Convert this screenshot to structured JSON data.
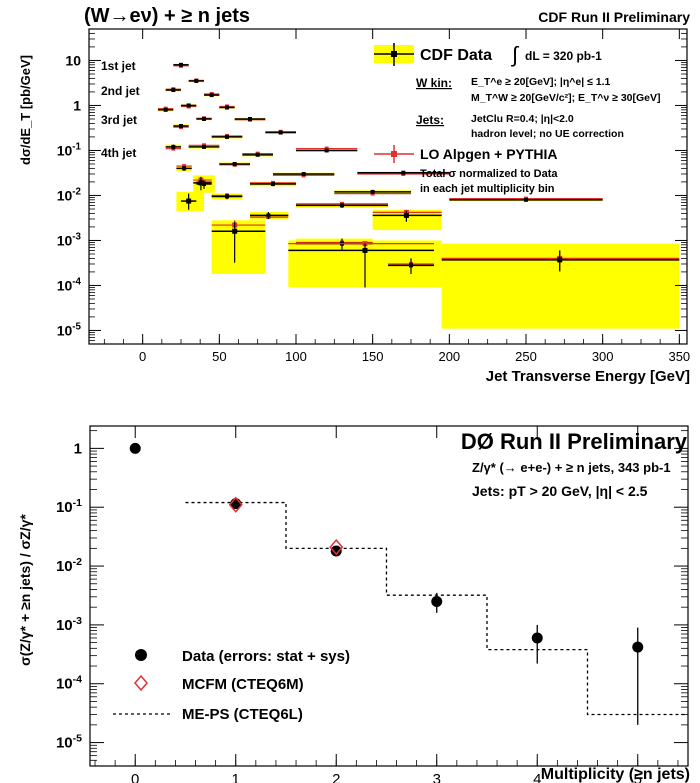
{
  "chart_data": [
    {
      "type": "scatter",
      "title": "(W→eν) + ≥ n jets",
      "subtitle": "CDF Run II Preliminary",
      "xlabel": "Jet Transverse Energy [GeV]",
      "ylabel": "dσ/dE_T [pb/GeV]",
      "xlim": [
        -35,
        355
      ],
      "ylim": [
        5e-06,
        50
      ],
      "yscale": "log",
      "xticks": [
        0,
        50,
        100,
        150,
        200,
        250,
        300,
        350
      ],
      "ytick_labels": [
        "10",
        "1",
        "10-1",
        "10-2",
        "10-3",
        "10-4",
        "10-5"
      ],
      "legend": {
        "data_label": "CDF Data",
        "lumi_text": "dL = 320 pb-1",
        "wkin_title": "W kin:",
        "wkin_line1": "E_T^e ≥ 20[GeV]; |η^e| ≤ 1.1",
        "wkin_line2": "M_T^W ≥ 20[GeV/c²]; E_T^ν ≥ 30[GeV]",
        "jets_title": "Jets:",
        "jets_line1": "JetClu R=0.4; |η|<2.0",
        "jets_line2": "hadron level; no UE correction",
        "mc_label": "LO Alpgen + PYTHIA",
        "note_line1": "Total σ normalized to Data",
        "note_line2": "in each jet multiplicity bin"
      },
      "jet_labels": [
        "1st jet",
        "2nd jet",
        "3rd jet",
        "4th jet"
      ],
      "series": [
        {
          "name": "CDF Data",
          "role": "data",
          "points": [
            {
              "x": 25,
              "y": 8,
              "xlo": 20,
              "xhi": 30,
              "ylo": 7.5,
              "yhi": 8.5
            },
            {
              "x": 35,
              "y": 3.5,
              "xlo": 30,
              "xhi": 40,
              "ylo": 3.3,
              "yhi": 3.7
            },
            {
              "x": 45,
              "y": 1.7,
              "xlo": 40,
              "xhi": 50,
              "ylo": 1.6,
              "yhi": 1.8
            },
            {
              "x": 55,
              "y": 0.9,
              "xlo": 50,
              "xhi": 60,
              "ylo": 0.85,
              "yhi": 0.95
            },
            {
              "x": 70,
              "y": 0.5,
              "xlo": 60,
              "xhi": 80,
              "ylo": 0.47,
              "yhi": 0.53
            },
            {
              "x": 90,
              "y": 0.25,
              "xlo": 80,
              "xhi": 100,
              "ylo": 0.235,
              "yhi": 0.265
            },
            {
              "x": 120,
              "y": 0.1,
              "xlo": 100,
              "xhi": 140,
              "ylo": 0.094,
              "yhi": 0.106
            },
            {
              "x": 170,
              "y": 0.032,
              "xlo": 140,
              "xhi": 200,
              "ylo": 0.03,
              "yhi": 0.034
            },
            {
              "x": 250,
              "y": 0.008,
              "xlo": 200,
              "xhi": 300,
              "ylo": 0.0075,
              "yhi": 0.0085
            },
            {
              "x": 20,
              "y": 2.2,
              "xlo": 15,
              "xhi": 25,
              "ylo": 2.05,
              "yhi": 2.35
            },
            {
              "x": 30,
              "y": 1.0,
              "xlo": 25,
              "xhi": 35,
              "ylo": 0.94,
              "yhi": 1.06
            },
            {
              "x": 40,
              "y": 0.5,
              "xlo": 35,
              "xhi": 45,
              "ylo": 0.47,
              "yhi": 0.53
            },
            {
              "x": 55,
              "y": 0.2,
              "xlo": 45,
              "xhi": 65,
              "ylo": 0.185,
              "yhi": 0.215
            },
            {
              "x": 75,
              "y": 0.08,
              "xlo": 65,
              "xhi": 85,
              "ylo": 0.074,
              "yhi": 0.086
            },
            {
              "x": 105,
              "y": 0.03,
              "xlo": 85,
              "xhi": 125,
              "ylo": 0.028,
              "yhi": 0.032
            },
            {
              "x": 150,
              "y": 0.012,
              "xlo": 125,
              "xhi": 175,
              "ylo": 0.011,
              "yhi": 0.013
            },
            {
              "x": 15,
              "y": 0.8,
              "xlo": 10,
              "xhi": 20,
              "ylo": 0.74,
              "yhi": 0.86
            },
            {
              "x": 25,
              "y": 0.35,
              "xlo": 20,
              "xhi": 30,
              "ylo": 0.32,
              "yhi": 0.38
            },
            {
              "x": 40,
              "y": 0.12,
              "xlo": 30,
              "xhi": 50,
              "ylo": 0.11,
              "yhi": 0.13
            },
            {
              "x": 60,
              "y": 0.05,
              "xlo": 50,
              "xhi": 70,
              "ylo": 0.046,
              "yhi": 0.054
            },
            {
              "x": 85,
              "y": 0.018,
              "xlo": 70,
              "xhi": 100,
              "ylo": 0.016,
              "yhi": 0.02
            },
            {
              "x": 130,
              "y": 0.006,
              "xlo": 100,
              "xhi": 160,
              "ylo": 0.0053,
              "yhi": 0.0067
            },
            {
              "x": 20,
              "y": 0.12,
              "xlo": 15,
              "xhi": 25,
              "ylo": 0.105,
              "yhi": 0.135
            },
            {
              "x": 27,
              "y": 0.04,
              "xlo": 22,
              "xhi": 32,
              "ylo": 0.035,
              "yhi": 0.045
            },
            {
              "x": 40,
              "y": 0.018,
              "xlo": 35,
              "xhi": 45,
              "ylo": 0.014,
              "yhi": 0.022
            },
            {
              "x": 55,
              "y": 0.0095,
              "xlo": 45,
              "xhi": 65,
              "ylo": 0.0082,
              "yhi": 0.011
            },
            {
              "x": 82,
              "y": 0.0036,
              "xlo": 70,
              "xhi": 95,
              "ylo": 0.003,
              "yhi": 0.0043
            },
            {
              "x": 130,
              "y": 0.00085,
              "xlo": 100,
              "xhi": 150,
              "ylo": 0.00062,
              "yhi": 0.0011
            },
            {
              "x": 175,
              "y": 0.00028,
              "xlo": 160,
              "xhi": 190,
              "ylo": 0.00018,
              "yhi": 0.0004
            }
          ]
        },
        {
          "name": "LO Alpgen + PYTHIA",
          "role": "mc",
          "points": [
            {
              "x": 25,
              "y": 7.6,
              "xlo": 20,
              "xhi": 30
            },
            {
              "x": 35,
              "y": 3.6,
              "xlo": 30,
              "xhi": 40
            },
            {
              "x": 45,
              "y": 1.8,
              "xlo": 40,
              "xhi": 50
            },
            {
              "x": 55,
              "y": 0.95,
              "xlo": 50,
              "xhi": 60
            },
            {
              "x": 70,
              "y": 0.48,
              "xlo": 60,
              "xhi": 80
            },
            {
              "x": 90,
              "y": 0.26,
              "xlo": 80,
              "xhi": 100
            },
            {
              "x": 120,
              "y": 0.11,
              "xlo": 100,
              "xhi": 140
            },
            {
              "x": 170,
              "y": 0.03,
              "xlo": 140,
              "xhi": 200
            },
            {
              "x": 250,
              "y": 0.0085,
              "xlo": 200,
              "xhi": 300
            },
            {
              "x": 20,
              "y": 2.3,
              "xlo": 15,
              "xhi": 25
            },
            {
              "x": 30,
              "y": 0.95,
              "xlo": 25,
              "xhi": 35
            },
            {
              "x": 40,
              "y": 0.52,
              "xlo": 35,
              "xhi": 45
            },
            {
              "x": 55,
              "y": 0.21,
              "xlo": 45,
              "xhi": 65
            },
            {
              "x": 75,
              "y": 0.085,
              "xlo": 65,
              "xhi": 85
            },
            {
              "x": 105,
              "y": 0.028,
              "xlo": 85,
              "xhi": 125
            },
            {
              "x": 150,
              "y": 0.011,
              "xlo": 125,
              "xhi": 175
            },
            {
              "x": 15,
              "y": 0.85,
              "xlo": 10,
              "xhi": 20
            },
            {
              "x": 25,
              "y": 0.33,
              "xlo": 20,
              "xhi": 30
            },
            {
              "x": 40,
              "y": 0.13,
              "xlo": 30,
              "xhi": 50
            },
            {
              "x": 60,
              "y": 0.048,
              "xlo": 50,
              "xhi": 70
            },
            {
              "x": 85,
              "y": 0.019,
              "xlo": 70,
              "xhi": 100
            },
            {
              "x": 130,
              "y": 0.0065,
              "xlo": 100,
              "xhi": 160
            },
            {
              "x": 20,
              "y": 0.11,
              "xlo": 15,
              "xhi": 25
            },
            {
              "x": 27,
              "y": 0.045,
              "xlo": 22,
              "xhi": 32
            },
            {
              "x": 40,
              "y": 0.02,
              "xlo": 35,
              "xhi": 45
            },
            {
              "x": 55,
              "y": 0.01,
              "xlo": 45,
              "xhi": 65
            },
            {
              "x": 82,
              "y": 0.0033,
              "xlo": 70,
              "xhi": 95
            },
            {
              "x": 130,
              "y": 0.0009,
              "xlo": 100,
              "xhi": 150
            },
            {
              "x": 175,
              "y": 0.0003,
              "xlo": 160,
              "xhi": 190
            }
          ]
        }
      ],
      "big_error_boxes": [
        {
          "xlo": 45,
          "xhi": 80,
          "ylo": 0.00018,
          "yhi": 0.0028
        },
        {
          "xlo": 95,
          "xhi": 195,
          "ylo": 9e-05,
          "yhi": 0.001
        },
        {
          "xlo": 150,
          "xhi": 195,
          "ylo": 0.0017,
          "yhi": 0.0048
        },
        {
          "xlo": 195,
          "xhi": 350,
          "ylo": 1.1e-05,
          "yhi": 0.00085
        },
        {
          "xlo": 22,
          "xhi": 40,
          "ylo": 0.0045,
          "yhi": 0.012
        },
        {
          "xlo": 33,
          "xhi": 47,
          "ylo": 0.0115,
          "yhi": 0.028
        }
      ],
      "big_points": [
        {
          "x": 60,
          "y": 0.0016,
          "xlo": 45,
          "xhi": 80,
          "ylo": 0.00032,
          "yhi": 0.0026,
          "mc": 0.0022,
          "mlo": 0.0015,
          "mhi": 0.0028
        },
        {
          "x": 145,
          "y": 0.0006,
          "xlo": 95,
          "xhi": 190,
          "ylo": 9e-05,
          "yhi": 0.00085,
          "mc": 0.00085,
          "mlo": 0.00062,
          "mhi": 0.00095
        },
        {
          "x": 172,
          "y": 0.0036,
          "xlo": 150,
          "xhi": 195,
          "ylo": 0.0026,
          "yhi": 0.0045,
          "mc": 0.0042,
          "mlo": 0.0032,
          "mhi": 0.0048
        },
        {
          "x": 272,
          "y": 0.00037,
          "xlo": 195,
          "xhi": 350,
          "ylo": 0.00021,
          "yhi": 0.0006,
          "mc": 0.0004,
          "mlo": 0.0002,
          "mhi": 0.0006
        },
        {
          "x": 30,
          "y": 0.0075,
          "xlo": 25,
          "xhi": 35,
          "ylo": 0.0048,
          "yhi": 0.011,
          "mc": 0.0,
          "mlo": 0,
          "mhi": 0
        },
        {
          "x": 38,
          "y": 0.019,
          "xlo": 33,
          "xhi": 45,
          "ylo": 0.013,
          "yhi": 0.026,
          "mc": 0.022,
          "mlo": 0,
          "mhi": 0
        }
      ]
    },
    {
      "type": "scatter",
      "title": "DØ Run II Preliminary",
      "subtitle": "Z/γ* (→ e+e-) + ≥ n jets, 343 pb-1",
      "subtitle2": "Jets: pT > 20 GeV, |η| < 2.5",
      "xlabel": "Multiplicity (≥n jets)",
      "ylabel": "σ(Z/γ* + ≥n jets) / σZ/γ*",
      "xlim": [
        -0.45,
        5.5
      ],
      "ylim": [
        4e-06,
        2.4
      ],
      "yscale": "log",
      "xticks": [
        0,
        1,
        2,
        3,
        4,
        5
      ],
      "ytick_labels": [
        "1",
        "10-1",
        "10-2",
        "10-3",
        "10-4",
        "10-5"
      ],
      "legend": {
        "data_label": "Data (errors: stat + sys)",
        "mcfm_label": "MCFM (CTEQ6M)",
        "meps_label": "ME-PS (CTEQ6L)"
      },
      "series": [
        {
          "name": "Data (errors: stat + sys)",
          "x": [
            0,
            1,
            2,
            3,
            4,
            5
          ],
          "y": [
            1,
            0.115,
            0.018,
            0.0025,
            0.0006,
            0.00042
          ],
          "yerr_lo": [
            1,
            0.105,
            0.016,
            0.0016,
            0.00022,
            2e-05
          ],
          "yerr_hi": [
            1,
            0.125,
            0.021,
            0.0035,
            0.001,
            0.0009
          ]
        },
        {
          "name": "MCFM (CTEQ6M)",
          "x": [
            1,
            2
          ],
          "y": [
            0.11,
            0.021
          ]
        },
        {
          "name": "ME-PS (CTEQ6L)",
          "steps": [
            {
              "xlo": 0.5,
              "xhi": 1.5,
              "y": 0.12
            },
            {
              "xlo": 1.5,
              "xhi": 2.5,
              "y": 0.02
            },
            {
              "xlo": 2.5,
              "xhi": 3.5,
              "y": 0.0032
            },
            {
              "xlo": 3.5,
              "xhi": 4.5,
              "y": 0.00038
            },
            {
              "xlo": 4.5,
              "xhi": 5.5,
              "y": 3e-05
            }
          ]
        }
      ]
    }
  ]
}
